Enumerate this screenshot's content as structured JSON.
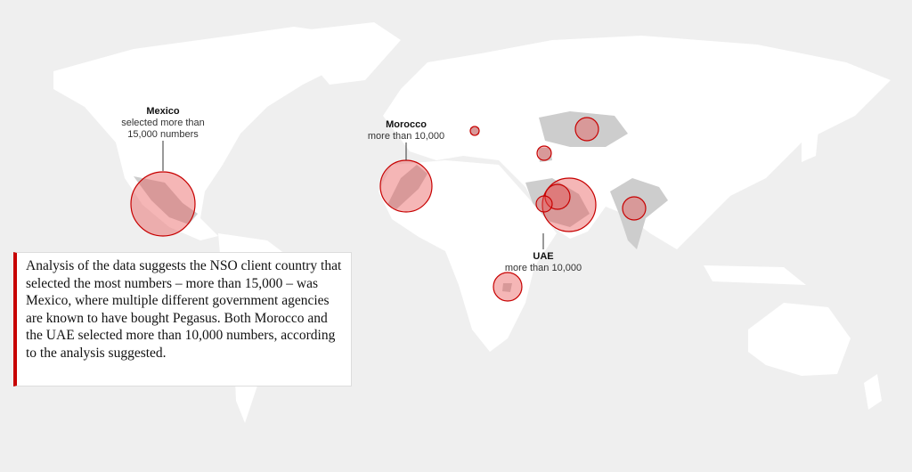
{
  "annotations": [
    {
      "name": "Mexico",
      "detail": [
        "selected more than",
        "15,000 numbers"
      ]
    },
    {
      "name": "Morocco",
      "detail": [
        "more than 10,000"
      ]
    },
    {
      "name": "UAE",
      "detail": [
        "more than 10,000"
      ]
    }
  ],
  "caption": "Analysis of the data suggests the NSO client country that selected the most numbers – more than 15,000 – was Mexico, where multiple different government agencies are known to have bought Pegasus. Both Morocco and the UAE selected more than 10,000 numbers, according to the analysis suggested."
}
